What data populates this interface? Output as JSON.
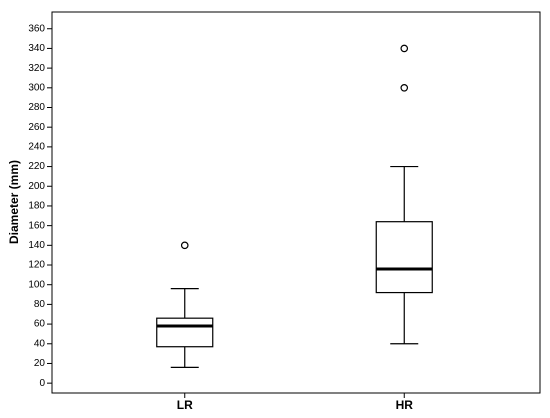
{
  "chart_data": {
    "type": "box",
    "y_label": "Diameter (mm)",
    "categories": [
      "LR",
      "HR"
    ],
    "min": [
      16,
      40
    ],
    "q1": [
      37,
      92
    ],
    "median": [
      58,
      116
    ],
    "q3": [
      66,
      164
    ],
    "max": [
      96,
      220
    ],
    "outliers": [
      [
        140
      ],
      [
        300,
        340
      ]
    ],
    "ylim": [
      -10,
      377
    ],
    "yticks": [
      0,
      20,
      40,
      60,
      80,
      100,
      120,
      140,
      160,
      180,
      200,
      220,
      240,
      260,
      280,
      300,
      320,
      340,
      360
    ]
  }
}
